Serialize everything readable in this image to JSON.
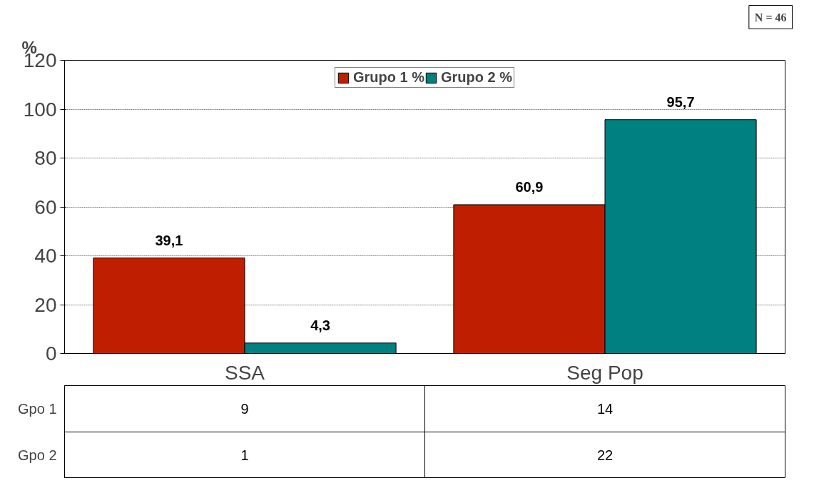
{
  "chart_data": {
    "type": "bar",
    "ylabel": "%",
    "categories": [
      "SSA",
      "Seg Pop"
    ],
    "series": [
      {
        "name": "Grupo 1 %",
        "color": "#c01e00",
        "values": [
          39.1,
          60.9
        ],
        "value_labels": [
          "39,1",
          "60,9"
        ]
      },
      {
        "name": "Grupo 2 %",
        "color": "#008080",
        "values": [
          4.3,
          95.7
        ],
        "value_labels": [
          "4,3",
          "95,7"
        ]
      }
    ],
    "ylim": [
      0,
      120
    ],
    "yticks": [
      0,
      20,
      40,
      60,
      80,
      100,
      120
    ],
    "grid": "y",
    "legend": "top",
    "annotations": [
      "N = 46",
      "Gpo 1",
      "9",
      "14",
      "Gpo 2",
      "1",
      "22"
    ]
  }
}
